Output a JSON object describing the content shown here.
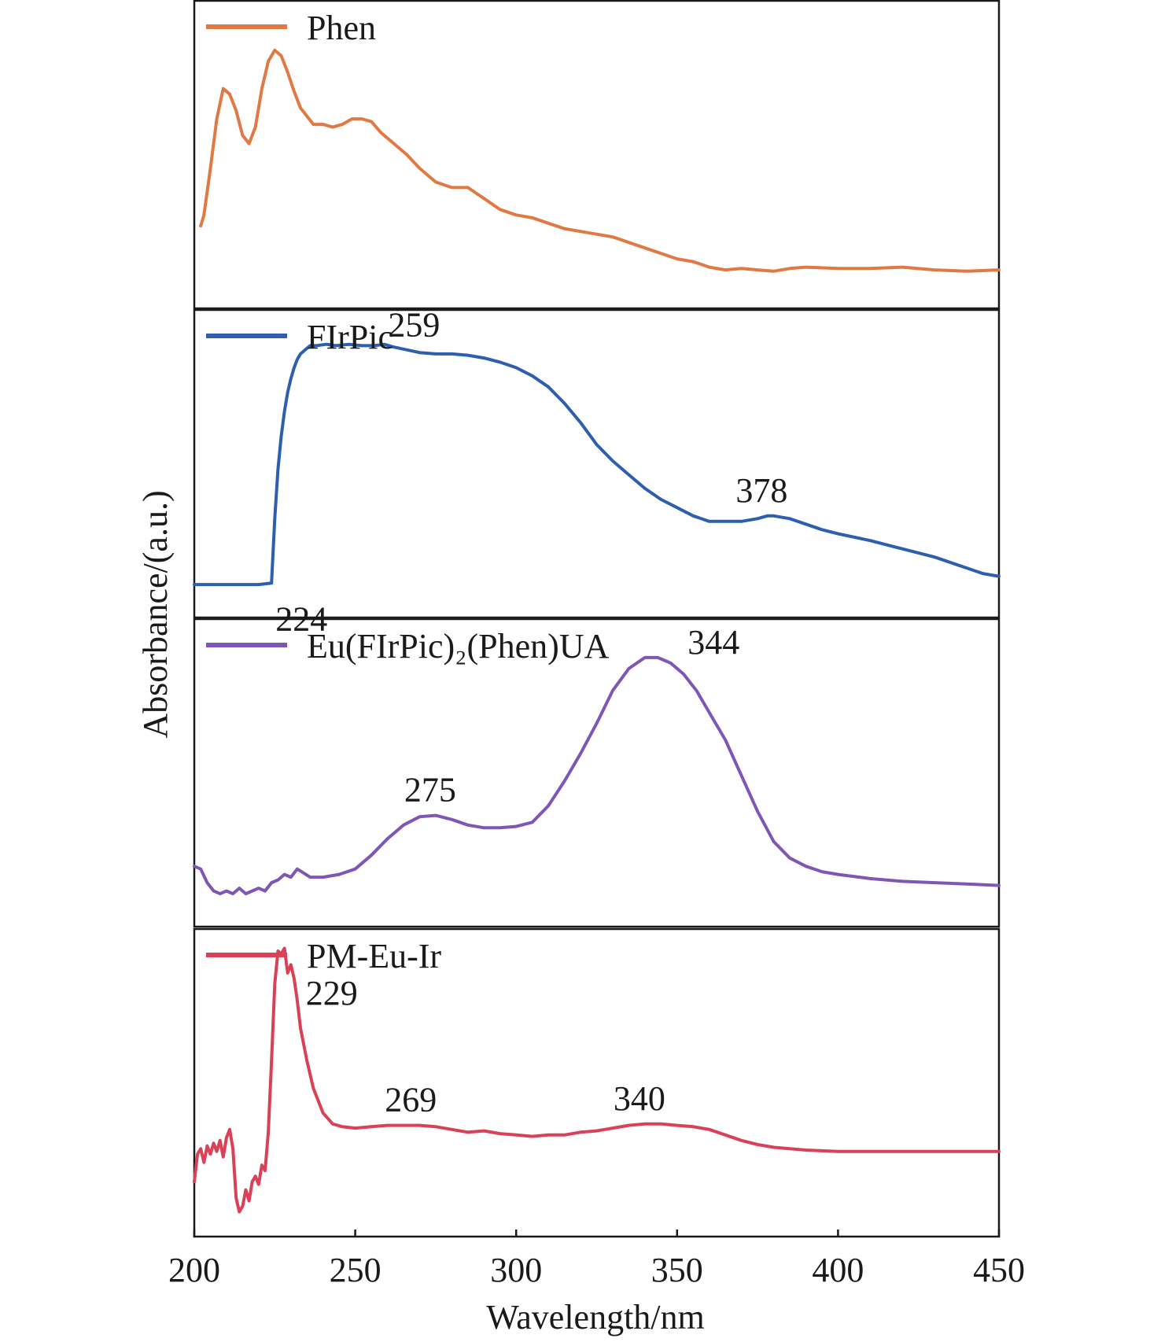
{
  "chart_data": {
    "type": "line",
    "layout": "stacked-panels",
    "xlabel": "Wavelength/nm",
    "ylabel": "Absorbance/(a.u.)",
    "xlim": [
      200,
      450
    ],
    "xticks": [
      200,
      250,
      300,
      350,
      400,
      450
    ],
    "yticks": [],
    "grid": false,
    "legend_position": "top-left of each panel",
    "panels": [
      {
        "name": "Phen",
        "color": "#e07a44",
        "x": [
          202,
          203,
          205,
          207,
          209,
          211,
          213,
          215,
          217,
          219,
          221,
          223,
          225,
          227,
          229,
          231,
          233,
          235,
          237,
          240,
          243,
          246,
          249,
          252,
          255,
          258,
          262,
          266,
          270,
          275,
          280,
          285,
          290,
          295,
          300,
          305,
          310,
          315,
          320,
          325,
          330,
          335,
          340,
          345,
          350,
          355,
          360,
          365,
          370,
          375,
          380,
          385,
          390,
          400,
          410,
          420,
          430,
          440,
          450
        ],
        "values": [
          0.24,
          0.28,
          0.45,
          0.63,
          0.74,
          0.72,
          0.66,
          0.57,
          0.54,
          0.6,
          0.74,
          0.84,
          0.88,
          0.86,
          0.8,
          0.73,
          0.67,
          0.64,
          0.61,
          0.61,
          0.6,
          0.61,
          0.63,
          0.63,
          0.62,
          0.58,
          0.54,
          0.5,
          0.45,
          0.4,
          0.38,
          0.38,
          0.34,
          0.3,
          0.28,
          0.27,
          0.25,
          0.23,
          0.22,
          0.21,
          0.2,
          0.18,
          0.16,
          0.14,
          0.12,
          0.11,
          0.09,
          0.08,
          0.085,
          0.08,
          0.075,
          0.085,
          0.09,
          0.085,
          0.085,
          0.09,
          0.08,
          0.075,
          0.08
        ]
      },
      {
        "name": "FIrPic",
        "color": "#2e5fae",
        "annotations": [
          "224",
          "259",
          "378"
        ],
        "annotation_x": [
          224,
          259,
          378
        ],
        "x": [
          200,
          210,
          220,
          224,
          225,
          226,
          227,
          228,
          229,
          230,
          231,
          232,
          233,
          234,
          236,
          238,
          241,
          244,
          248,
          252,
          256,
          259,
          262,
          266,
          270,
          275,
          280,
          285,
          290,
          295,
          300,
          305,
          310,
          315,
          320,
          325,
          330,
          335,
          340,
          345,
          350,
          355,
          360,
          365,
          370,
          375,
          378,
          380,
          385,
          390,
          395,
          400,
          410,
          420,
          430,
          440,
          445,
          450
        ],
        "values": [
          0.06,
          0.06,
          0.06,
          0.065,
          0.3,
          0.48,
          0.6,
          0.69,
          0.76,
          0.81,
          0.85,
          0.88,
          0.9,
          0.91,
          0.93,
          0.93,
          0.935,
          0.93,
          0.935,
          0.93,
          0.93,
          0.935,
          0.925,
          0.915,
          0.905,
          0.9,
          0.9,
          0.895,
          0.885,
          0.87,
          0.85,
          0.82,
          0.78,
          0.72,
          0.65,
          0.57,
          0.51,
          0.46,
          0.41,
          0.37,
          0.34,
          0.31,
          0.29,
          0.29,
          0.29,
          0.3,
          0.31,
          0.31,
          0.3,
          0.28,
          0.26,
          0.245,
          0.22,
          0.19,
          0.16,
          0.12,
          0.1,
          0.09
        ]
      },
      {
        "name": "Eu(FIrPic)₂(Phen)UA",
        "color": "#7e57b6",
        "annotations": [
          "275",
          "344"
        ],
        "annotation_x": [
          275,
          344
        ],
        "x": [
          200,
          202,
          204,
          206,
          208,
          210,
          212,
          214,
          216,
          218,
          220,
          222,
          224,
          226,
          228,
          230,
          232,
          236,
          240,
          245,
          250,
          255,
          260,
          265,
          270,
          275,
          280,
          285,
          290,
          295,
          300,
          305,
          310,
          315,
          320,
          325,
          330,
          335,
          340,
          344,
          348,
          352,
          356,
          360,
          365,
          370,
          375,
          380,
          385,
          390,
          395,
          400,
          410,
          420,
          430,
          440,
          450
        ],
        "values": [
          0.16,
          0.15,
          0.1,
          0.07,
          0.06,
          0.07,
          0.06,
          0.08,
          0.06,
          0.07,
          0.08,
          0.07,
          0.1,
          0.11,
          0.13,
          0.12,
          0.15,
          0.12,
          0.12,
          0.13,
          0.15,
          0.2,
          0.26,
          0.31,
          0.34,
          0.345,
          0.33,
          0.31,
          0.3,
          0.3,
          0.305,
          0.32,
          0.38,
          0.47,
          0.57,
          0.68,
          0.8,
          0.88,
          0.92,
          0.92,
          0.9,
          0.86,
          0.8,
          0.72,
          0.62,
          0.49,
          0.36,
          0.25,
          0.19,
          0.16,
          0.14,
          0.13,
          0.115,
          0.105,
          0.1,
          0.095,
          0.09
        ]
      },
      {
        "name": "PM-Eu-Ir",
        "color": "#d94256",
        "annotations": [
          "229",
          "269",
          "340"
        ],
        "annotation_x": [
          229,
          269,
          340
        ],
        "x": [
          200,
          201,
          202,
          203,
          204,
          205,
          206,
          207,
          208,
          209,
          210,
          211,
          212,
          213,
          214,
          215,
          216,
          217,
          218,
          219,
          220,
          221,
          222,
          223,
          224,
          225,
          226,
          227,
          228,
          229,
          230,
          231,
          232,
          233,
          235,
          237,
          240,
          243,
          246,
          250,
          255,
          260,
          265,
          270,
          275,
          280,
          285,
          290,
          295,
          300,
          305,
          310,
          315,
          320,
          325,
          330,
          335,
          340,
          345,
          350,
          355,
          360,
          365,
          370,
          375,
          380,
          390,
          400,
          410,
          420,
          430,
          440,
          450
        ],
        "values": [
          0.14,
          0.24,
          0.26,
          0.21,
          0.27,
          0.24,
          0.28,
          0.25,
          0.29,
          0.23,
          0.3,
          0.33,
          0.26,
          0.08,
          0.03,
          0.05,
          0.11,
          0.07,
          0.14,
          0.16,
          0.13,
          0.2,
          0.18,
          0.32,
          0.58,
          0.86,
          0.98,
          0.97,
          0.99,
          0.9,
          0.93,
          0.88,
          0.8,
          0.7,
          0.58,
          0.48,
          0.39,
          0.35,
          0.34,
          0.335,
          0.34,
          0.345,
          0.345,
          0.345,
          0.34,
          0.33,
          0.32,
          0.325,
          0.315,
          0.31,
          0.305,
          0.31,
          0.31,
          0.32,
          0.325,
          0.335,
          0.345,
          0.35,
          0.35,
          0.345,
          0.34,
          0.33,
          0.31,
          0.29,
          0.275,
          0.265,
          0.255,
          0.25,
          0.25,
          0.25,
          0.25,
          0.25,
          0.25
        ]
      }
    ]
  }
}
